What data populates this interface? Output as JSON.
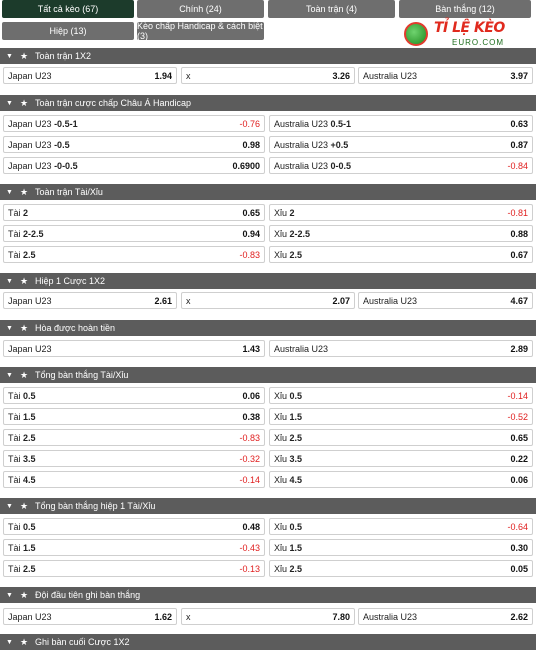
{
  "tabs": {
    "all": "Tất cả kèo (67)",
    "main": "Chính (24)",
    "full": "Toàn trận (4)",
    "goals": "Bàn thắng (12)",
    "half": "Hiệp (13)",
    "handicap": "Kèo chấp Handicap & cách biệt (3)"
  },
  "logo": {
    "text": "TỈ LỆ KÈO",
    "sub": "EURO.COM"
  },
  "sections": {
    "s1": {
      "title": "Toàn trận 1X2",
      "cells": [
        {
          "label": "Japan U23",
          "odd": "1.94"
        },
        {
          "label": "x",
          "odd": "3.26"
        },
        {
          "label": "Australia U23",
          "odd": "3.97"
        }
      ]
    },
    "s2": {
      "title": "Toàn trận cược chấp Châu Á Handicap",
      "rows": [
        [
          {
            "label": "Japan U23",
            "line": "-0.5-1",
            "odd": "-0.76"
          },
          {
            "label": "Australia U23",
            "line": "0.5-1",
            "odd": "0.63"
          }
        ],
        [
          {
            "label": "Japan U23",
            "line": "-0.5",
            "odd": "0.98"
          },
          {
            "label": "Australia U23",
            "line": "+0.5",
            "odd": "0.87"
          }
        ],
        [
          {
            "label": "Japan U23",
            "line": "-0-0.5",
            "odd": "0.6900"
          },
          {
            "label": "Australia U23",
            "line": "0-0.5",
            "odd": "-0.84"
          }
        ]
      ]
    },
    "s3": {
      "title": "Toàn trận Tài/Xỉu",
      "rows": [
        [
          {
            "label": "Tài",
            "line": "2",
            "odd": "0.65"
          },
          {
            "label": "Xỉu",
            "line": "2",
            "odd": "-0.81"
          }
        ],
        [
          {
            "label": "Tài",
            "line": "2-2.5",
            "odd": "0.94"
          },
          {
            "label": "Xỉu",
            "line": "2-2.5",
            "odd": "0.88"
          }
        ],
        [
          {
            "label": "Tài",
            "line": "2.5",
            "odd": "-0.83"
          },
          {
            "label": "Xỉu",
            "line": "2.5",
            "odd": "0.67"
          }
        ]
      ]
    },
    "s4": {
      "title": "Hiệp 1 Cược 1X2",
      "cells": [
        {
          "label": "Japan U23",
          "odd": "2.61"
        },
        {
          "label": "x",
          "odd": "2.07"
        },
        {
          "label": "Australia U23",
          "odd": "4.67"
        }
      ]
    },
    "s5": {
      "title": "Hòa được hoàn tiền",
      "cells": [
        {
          "label": "Japan U23",
          "odd": "1.43"
        },
        {
          "label": "Australia U23",
          "odd": "2.89"
        }
      ]
    },
    "s6": {
      "title": "Tổng bàn thắng Tài/Xỉu",
      "rows": [
        [
          {
            "label": "Tài",
            "line": "0.5",
            "odd": "0.06"
          },
          {
            "label": "Xỉu",
            "line": "0.5",
            "odd": "-0.14"
          }
        ],
        [
          {
            "label": "Tài",
            "line": "1.5",
            "odd": "0.38"
          },
          {
            "label": "Xỉu",
            "line": "1.5",
            "odd": "-0.52"
          }
        ],
        [
          {
            "label": "Tài",
            "line": "2.5",
            "odd": "-0.83"
          },
          {
            "label": "Xỉu",
            "line": "2.5",
            "odd": "0.65"
          }
        ],
        [
          {
            "label": "Tài",
            "line": "3.5",
            "odd": "-0.32"
          },
          {
            "label": "Xỉu",
            "line": "3.5",
            "odd": "0.22"
          }
        ],
        [
          {
            "label": "Tài",
            "line": "4.5",
            "odd": "-0.14"
          },
          {
            "label": "Xỉu",
            "line": "4.5",
            "odd": "0.06"
          }
        ]
      ]
    },
    "s7": {
      "title": "Tổng bàn thắng hiệp 1 Tài/Xỉu",
      "rows": [
        [
          {
            "label": "Tài",
            "line": "0.5",
            "odd": "0.48"
          },
          {
            "label": "Xỉu",
            "line": "0.5",
            "odd": "-0.64"
          }
        ],
        [
          {
            "label": "Tài",
            "line": "1.5",
            "odd": "-0.43"
          },
          {
            "label": "Xỉu",
            "line": "1.5",
            "odd": "0.30"
          }
        ],
        [
          {
            "label": "Tài",
            "line": "2.5",
            "odd": "-0.13"
          },
          {
            "label": "Xỉu",
            "line": "2.5",
            "odd": "0.05"
          }
        ]
      ]
    },
    "s8": {
      "title": "Đội đầu tiên ghi bàn thắng",
      "cells": [
        {
          "label": "Japan U23",
          "odd": "1.62"
        },
        {
          "label": "x",
          "odd": "7.80"
        },
        {
          "label": "Australia U23",
          "odd": "2.62"
        }
      ]
    },
    "s9": {
      "title": "Ghi bàn cuối Cược 1X2"
    }
  }
}
